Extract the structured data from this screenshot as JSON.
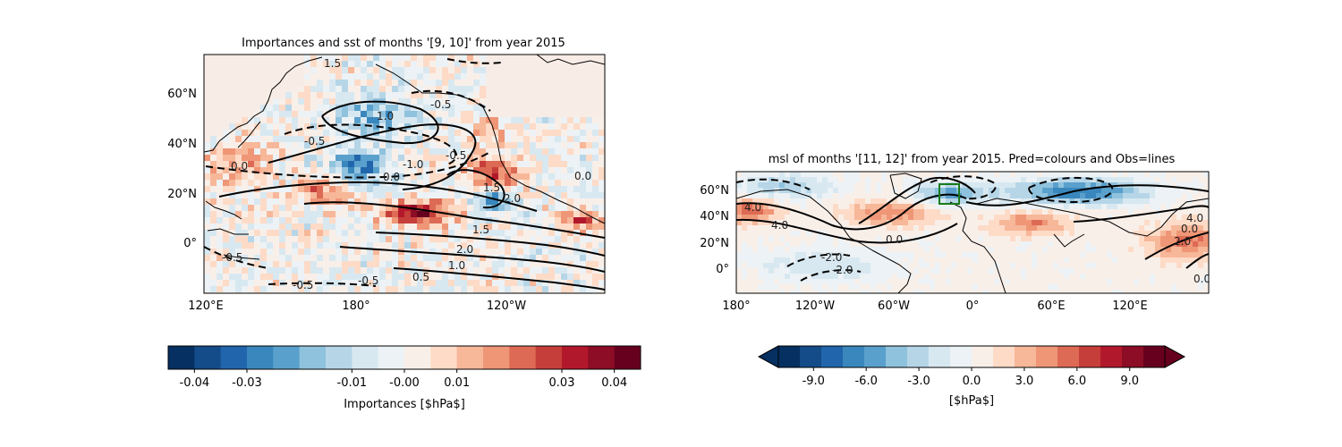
{
  "chart_data": [
    {
      "type": "heatmap",
      "title": "Importances and sst of months '[9, 10]' from year 2015",
      "lat_ticks": [
        "60°N",
        "40°N",
        "20°N",
        "0°"
      ],
      "lon_ticks": [
        "120°E",
        "180°",
        "120°W"
      ],
      "colorbar": {
        "label": "Importances [$hPa$]",
        "tick_labels": [
          "-0.04",
          "-0.03",
          "-0.01",
          "-0.00",
          "0.01",
          "0.03",
          "0.04"
        ],
        "range": [
          -0.045,
          0.045
        ],
        "extend": "neither"
      },
      "contour_labels": [
        "1.5",
        "-0.5",
        "1.0",
        "-0.5",
        "-0.5",
        "0.0",
        "-1.0",
        "0.0",
        "1.5",
        "2.0",
        "1.5",
        "2.0",
        "1.0",
        "0.5",
        "-0.5",
        "-0.5",
        "-0.5",
        "0.0"
      ]
    },
    {
      "type": "heatmap",
      "title": "msl of months '[11, 12]' from year 2015. Pred=colours and Obs=lines",
      "lat_ticks": [
        "60°N",
        "40°N",
        "20°N",
        "0°"
      ],
      "lon_ticks": [
        "180°",
        "120°W",
        "60°W",
        "0°",
        "60°E",
        "120°E"
      ],
      "colorbar": {
        "label": "[$hPa$]",
        "tick_labels": [
          "-9.0",
          "-6.0",
          "-3.0",
          "0.0",
          "3.0",
          "6.0",
          "9.0"
        ],
        "range": [
          -11,
          11
        ],
        "extend": "both"
      },
      "contour_labels": [
        "4.0",
        "4.0",
        "-2.0",
        "-2.0",
        "0.0",
        "0.0",
        "2.0",
        "4.0",
        "0.0"
      ]
    }
  ],
  "colors": {
    "cmap": [
      "#053061",
      "#134c88",
      "#2166ac",
      "#3a87bd",
      "#5aa0cc",
      "#8fc2dd",
      "#b6d6e8",
      "#d8e8f1",
      "#ecf2f5",
      "#f9efe9",
      "#fddbc7",
      "#f7b799",
      "#ef9677",
      "#dd6a54",
      "#c63e3a",
      "#b2182b",
      "#8c0d25",
      "#67001f"
    ],
    "land": "#f8ece6",
    "box": "#1a7a1a"
  }
}
